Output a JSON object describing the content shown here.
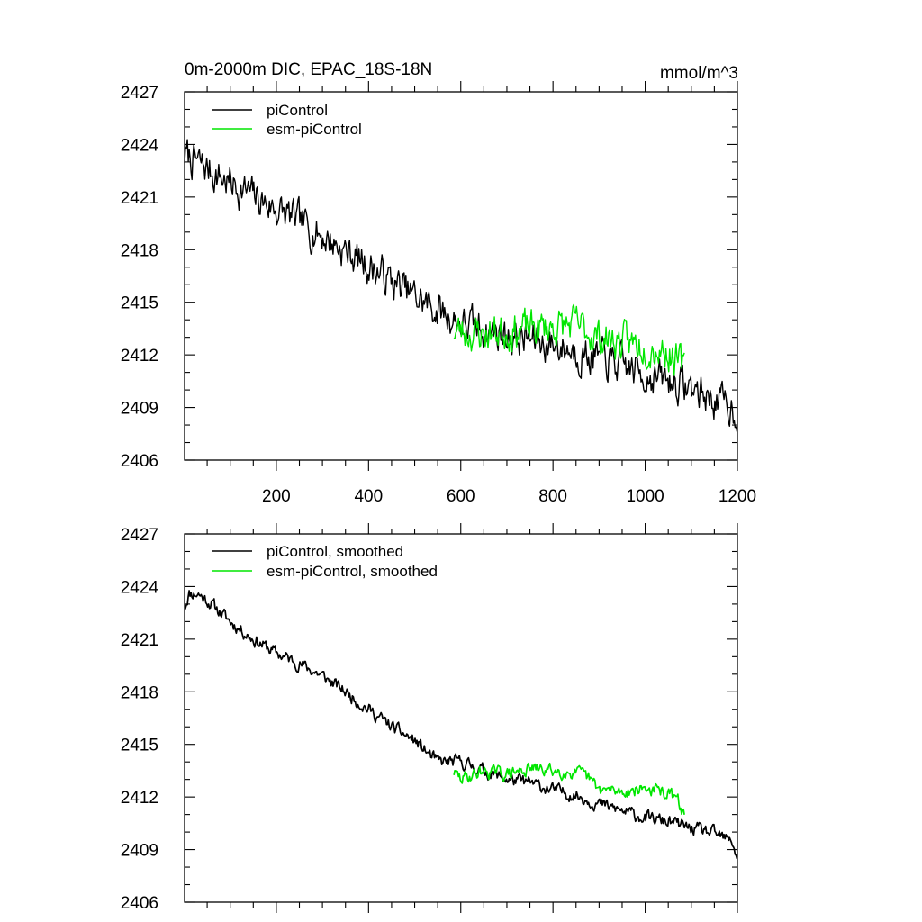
{
  "chart_data": [
    {
      "type": "line",
      "title_left": "0m-2000m DIC, EPAC_18S-18N",
      "title_right": "mmol/m^3",
      "xlabel": "",
      "ylabel": "",
      "xlim": [
        1,
        1200
      ],
      "ylim": [
        2406,
        2427
      ],
      "yticks": [
        2406,
        2409,
        2412,
        2415,
        2418,
        2421,
        2424,
        2427
      ],
      "ytick_labels": [
        "2406",
        "2409",
        "2412",
        "2415",
        "2418",
        "2421",
        "2424",
        "2427"
      ],
      "xticks": [
        200,
        400,
        600,
        800,
        1000,
        1200
      ],
      "xtick_labels": [
        "200",
        "400",
        "600",
        "800",
        "1000",
        "1200"
      ],
      "grid": false,
      "legend_position": "top-left",
      "series": [
        {
          "name": "piControl",
          "color": "#000000",
          "x_start": 1,
          "x_end": 1200,
          "trend_points": [
            [
              1,
              2423.4
            ],
            [
              100,
              2421.8
            ],
            [
              200,
              2420.3
            ],
            [
              300,
              2418.8
            ],
            [
              400,
              2417.1
            ],
            [
              500,
              2415.3
            ],
            [
              600,
              2413.8
            ],
            [
              700,
              2413.1
            ],
            [
              800,
              2412.6
            ],
            [
              900,
              2411.8
            ],
            [
              1000,
              2410.9
            ],
            [
              1100,
              2410.1
            ],
            [
              1200,
              2408.8
            ]
          ],
          "noise_amplitude": 0.85,
          "seed": 7
        },
        {
          "name": "esm-piControl",
          "color": "#00e600",
          "x_start": 585,
          "x_end": 1085,
          "trend_points": [
            [
              585,
              2413.4
            ],
            [
              650,
              2413.2
            ],
            [
              700,
              2413.4
            ],
            [
              800,
              2413.6
            ],
            [
              850,
              2413.7
            ],
            [
              900,
              2413.0
            ],
            [
              950,
              2412.7
            ],
            [
              1000,
              2412.6
            ],
            [
              1050,
              2412.2
            ],
            [
              1085,
              2411.2
            ]
          ],
          "noise_amplitude": 0.85,
          "seed": 23
        }
      ]
    },
    {
      "type": "line",
      "title_left": "",
      "title_right": "",
      "xlabel": "",
      "ylabel": "",
      "xlim": [
        1,
        1200
      ],
      "ylim": [
        2406,
        2427
      ],
      "yticks": [
        2406,
        2409,
        2412,
        2415,
        2418,
        2421,
        2424,
        2427
      ],
      "ytick_labels": [
        "2406",
        "2409",
        "2412",
        "2415",
        "2418",
        "2421",
        "2424",
        "2427"
      ],
      "xticks": [
        200,
        400,
        600,
        800,
        1000,
        1200
      ],
      "xtick_labels": [],
      "grid": false,
      "legend_position": "top-left",
      "series": [
        {
          "name": "piControl, smoothed",
          "color": "#000000",
          "x_start": 1,
          "x_end": 1200,
          "trend_points": [
            [
              1,
              2422.8
            ],
            [
              10,
              2423.6
            ],
            [
              30,
              2423.6
            ],
            [
              60,
              2423.0
            ],
            [
              100,
              2422.0
            ],
            [
              150,
              2421.0
            ],
            [
              200,
              2420.2
            ],
            [
              250,
              2419.6
            ],
            [
              300,
              2418.9
            ],
            [
              350,
              2418.0
            ],
            [
              400,
              2417.0
            ],
            [
              450,
              2416.0
            ],
            [
              500,
              2415.2
            ],
            [
              550,
              2414.0
            ],
            [
              600,
              2414.0
            ],
            [
              650,
              2413.5
            ],
            [
              700,
              2413.0
            ],
            [
              750,
              2412.8
            ],
            [
              800,
              2412.4
            ],
            [
              850,
              2412.1
            ],
            [
              900,
              2411.6
            ],
            [
              950,
              2411.2
            ],
            [
              1000,
              2410.8
            ],
            [
              1050,
              2410.6
            ],
            [
              1100,
              2410.2
            ],
            [
              1150,
              2409.9
            ],
            [
              1190,
              2409.4
            ],
            [
              1200,
              2408.5
            ]
          ],
          "noise_amplitude": 0.3,
          "seed": 11
        },
        {
          "name": "esm-piControl, smoothed",
          "color": "#00e600",
          "x_start": 585,
          "x_end": 1085,
          "trend_points": [
            [
              585,
              2413.4
            ],
            [
              600,
              2413.0
            ],
            [
              630,
              2413.3
            ],
            [
              650,
              2413.5
            ],
            [
              700,
              2413.3
            ],
            [
              750,
              2413.6
            ],
            [
              800,
              2413.5
            ],
            [
              850,
              2413.4
            ],
            [
              880,
              2413.0
            ],
            [
              900,
              2412.4
            ],
            [
              950,
              2412.3
            ],
            [
              1000,
              2412.5
            ],
            [
              1050,
              2412.2
            ],
            [
              1070,
              2411.8
            ],
            [
              1085,
              2411.0
            ]
          ],
          "noise_amplitude": 0.3,
          "seed": 29
        }
      ]
    }
  ]
}
